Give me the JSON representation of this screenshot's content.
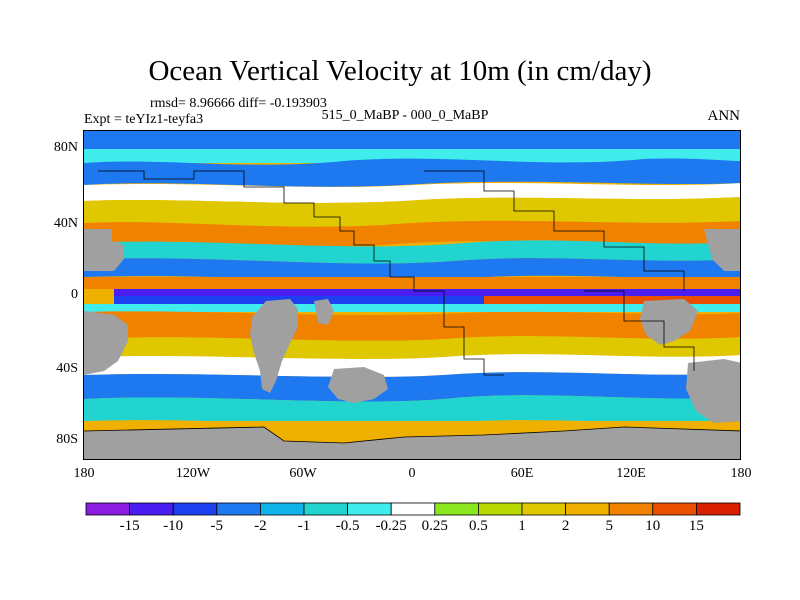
{
  "title": "Ocean Vertical Velocity at 10m (in cm/day)",
  "stats": "rmsd= 8.96666  diff= -0.193903",
  "subtitle": "515_0_MaBP - 000_0_MaBP",
  "experiment": "Expt = teYIz1-teyfa3",
  "season": "ANN",
  "map": {
    "land_color": "#a0a0a0",
    "lat_ticks": [
      "80N",
      "40N",
      "0",
      "40S",
      "80S"
    ],
    "lon_ticks": [
      "180",
      "120W",
      "60W",
      "0",
      "60E",
      "120E",
      "180"
    ]
  },
  "colorbar": {
    "colors": [
      "#8a1de0",
      "#4a1ef0",
      "#1e40f0",
      "#1e78f0",
      "#10b4e8",
      "#22d4d0",
      "#40ecec",
      "#ffffff",
      "#8ae61e",
      "#b8d800",
      "#e0c800",
      "#f0b000",
      "#f08200",
      "#e85000",
      "#d82000"
    ],
    "labels": [
      "-15",
      "-10",
      "-5",
      "-2",
      "-1",
      "-0.5",
      "-0.25",
      "0.25",
      "0.5",
      "1",
      "2",
      "5",
      "10",
      "15"
    ]
  }
}
